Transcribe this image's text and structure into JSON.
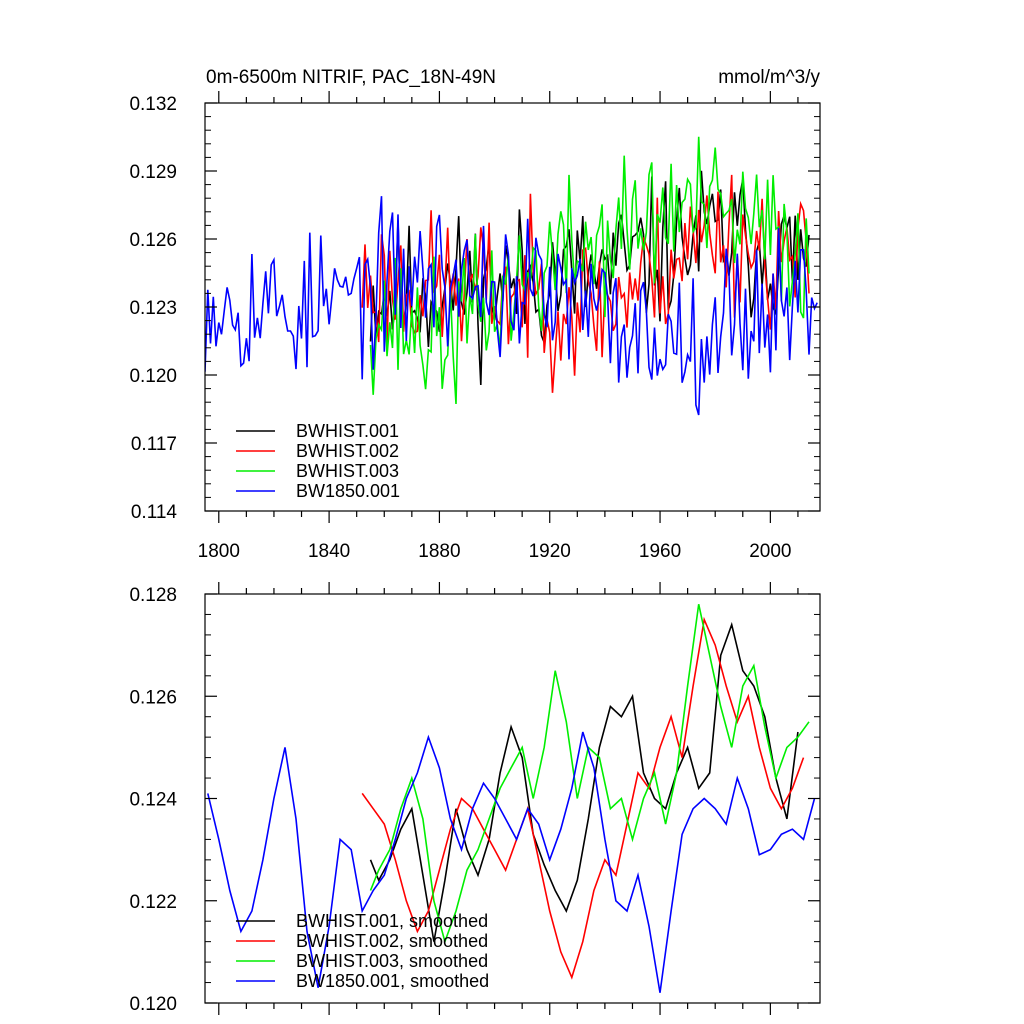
{
  "chart_data": [
    {
      "type": "line",
      "title": "0m-6500m NITRIF, PAC_18N-49N",
      "units": "mmol/m^3/y",
      "xlim": [
        1795,
        2018
      ],
      "ylim": [
        0.114,
        0.132
      ],
      "x_ticks": [
        1800,
        1840,
        1880,
        1920,
        1960,
        2000
      ],
      "y_ticks": [
        0.114,
        0.117,
        0.12,
        0.123,
        0.126,
        0.129,
        0.132
      ],
      "y_tick_labels": [
        "0.114",
        "0.117",
        "0.120",
        "0.123",
        "0.126",
        "0.129",
        "0.132"
      ],
      "x_tick_labels": [
        "1800",
        "1840",
        "1880",
        "1920",
        "1960",
        "2000"
      ],
      "legend_position": "bottom-left",
      "series": [
        {
          "name": "BWHIST.001",
          "color": "#000000",
          "x_start": 1855,
          "x_end": 2014,
          "mean": 0.1245,
          "amplitude": 0.003,
          "seed": 11,
          "trend": [
            [
              1855,
              0.1235
            ],
            [
              1900,
              0.124
            ],
            [
              1940,
              0.1245
            ],
            [
              1980,
              0.1262
            ],
            [
              2014,
              0.125
            ]
          ]
        },
        {
          "name": "BWHIST.002",
          "color": "#ff0000",
          "x_start": 1852,
          "x_end": 2014,
          "mean": 0.124,
          "amplitude": 0.003,
          "seed": 23,
          "trend": [
            [
              1852,
              0.124
            ],
            [
              1900,
              0.1238
            ],
            [
              1940,
              0.123
            ],
            [
              1980,
              0.1265
            ],
            [
              2014,
              0.1245
            ]
          ]
        },
        {
          "name": "BWHIST.003",
          "color": "#00ee00",
          "x_start": 1855,
          "x_end": 2014,
          "mean": 0.1242,
          "amplitude": 0.003,
          "seed": 37,
          "trend": [
            [
              1855,
              0.1228
            ],
            [
              1880,
              0.1215
            ],
            [
              1920,
              0.125
            ],
            [
              1970,
              0.1275
            ],
            [
              2014,
              0.1255
            ]
          ]
        },
        {
          "name": "BW1850.001",
          "color": "#0000ff",
          "x_start": 1795,
          "x_end": 2017,
          "mean": 0.1232,
          "amplitude": 0.003,
          "seed": 53,
          "trend": [
            [
              1795,
              0.1235
            ],
            [
              1830,
              0.1228
            ],
            [
              1875,
              0.1245
            ],
            [
              1920,
              0.1235
            ],
            [
              1960,
              0.1215
            ],
            [
              2017,
              0.1238
            ]
          ]
        }
      ]
    },
    {
      "type": "line",
      "xlim": [
        1795,
        2018
      ],
      "ylim": [
        0.12,
        0.128
      ],
      "y_ticks": [
        0.12,
        0.122,
        0.124,
        0.126,
        0.128
      ],
      "y_tick_labels": [
        "0.120",
        "0.122",
        "0.124",
        "0.126",
        "0.128"
      ],
      "legend_position": "bottom-left",
      "series": [
        {
          "name": "BWHIST.001, smoothed",
          "color": "#000000",
          "x": [
            1855,
            1858,
            1862,
            1866,
            1870,
            1874,
            1878,
            1882,
            1886,
            1890,
            1894,
            1898,
            1902,
            1906,
            1910,
            1914,
            1918,
            1922,
            1926,
            1930,
            1934,
            1938,
            1942,
            1946,
            1950,
            1954,
            1958,
            1962,
            1966,
            1970,
            1974,
            1978,
            1982,
            1986,
            1990,
            1994,
            1998,
            2002,
            2006,
            2010
          ],
          "y": [
            0.1228,
            0.1224,
            0.1228,
            0.1234,
            0.1238,
            0.1225,
            0.1212,
            0.1224,
            0.1238,
            0.123,
            0.1225,
            0.1232,
            0.1245,
            0.1254,
            0.1248,
            0.1233,
            0.1227,
            0.1222,
            0.1218,
            0.1224,
            0.1236,
            0.125,
            0.1258,
            0.1256,
            0.126,
            0.1245,
            0.124,
            0.1238,
            0.1245,
            0.125,
            0.1242,
            0.1245,
            0.1268,
            0.1274,
            0.1265,
            0.1262,
            0.1256,
            0.1244,
            0.1236,
            0.1253
          ]
        },
        {
          "name": "BWHIST.002, smoothed",
          "color": "#ff0000",
          "x": [
            1852,
            1856,
            1860,
            1864,
            1868,
            1872,
            1876,
            1880,
            1884,
            1888,
            1892,
            1896,
            1900,
            1904,
            1908,
            1912,
            1916,
            1920,
            1924,
            1928,
            1932,
            1936,
            1940,
            1944,
            1948,
            1952,
            1956,
            1960,
            1964,
            1968,
            1972,
            1976,
            1980,
            1984,
            1988,
            1992,
            1996,
            2000,
            2004,
            2008,
            2012
          ],
          "y": [
            0.1241,
            0.1238,
            0.1235,
            0.1228,
            0.122,
            0.1214,
            0.1218,
            0.1226,
            0.1234,
            0.124,
            0.1238,
            0.1234,
            0.123,
            0.1226,
            0.1232,
            0.1238,
            0.1228,
            0.1218,
            0.121,
            0.1205,
            0.1212,
            0.1222,
            0.1228,
            0.1225,
            0.1235,
            0.1245,
            0.1242,
            0.125,
            0.1256,
            0.1248,
            0.1262,
            0.1275,
            0.127,
            0.1262,
            0.1255,
            0.126,
            0.125,
            0.1242,
            0.1238,
            0.1242,
            0.1248
          ]
        },
        {
          "name": "BWHIST.003, smoothed",
          "color": "#00ee00",
          "x": [
            1855,
            1858,
            1862,
            1866,
            1870,
            1874,
            1878,
            1882,
            1886,
            1890,
            1894,
            1898,
            1902,
            1906,
            1910,
            1914,
            1918,
            1922,
            1926,
            1930,
            1934,
            1938,
            1942,
            1946,
            1950,
            1954,
            1958,
            1962,
            1966,
            1970,
            1974,
            1978,
            1982,
            1986,
            1990,
            1994,
            1998,
            2002,
            2006,
            2010,
            2014
          ],
          "y": [
            0.1222,
            0.1226,
            0.123,
            0.1238,
            0.1244,
            0.1236,
            0.122,
            0.1212,
            0.1218,
            0.1226,
            0.123,
            0.1236,
            0.1242,
            0.1246,
            0.125,
            0.124,
            0.125,
            0.1265,
            0.1255,
            0.124,
            0.125,
            0.1248,
            0.1238,
            0.124,
            0.1232,
            0.124,
            0.1245,
            0.1235,
            0.1245,
            0.1262,
            0.1278,
            0.1268,
            0.1258,
            0.125,
            0.1262,
            0.1266,
            0.1254,
            0.1244,
            0.125,
            0.1252,
            0.1255
          ]
        },
        {
          "name": "BW1850.001, smoothed",
          "color": "#0000ff",
          "x": [
            1796,
            1800,
            1804,
            1808,
            1812,
            1816,
            1820,
            1824,
            1828,
            1832,
            1836,
            1840,
            1844,
            1848,
            1852,
            1856,
            1860,
            1864,
            1868,
            1872,
            1876,
            1880,
            1884,
            1888,
            1892,
            1896,
            1900,
            1904,
            1908,
            1912,
            1916,
            1920,
            1924,
            1928,
            1932,
            1936,
            1940,
            1944,
            1948,
            1952,
            1956,
            1960,
            1964,
            1968,
            1972,
            1976,
            1980,
            1984,
            1988,
            1992,
            1996,
            2000,
            2004,
            2008,
            2012,
            2016
          ],
          "y": [
            0.1241,
            0.1232,
            0.1222,
            0.1214,
            0.1218,
            0.1228,
            0.124,
            0.125,
            0.1236,
            0.1214,
            0.1203,
            0.1215,
            0.1232,
            0.123,
            0.1218,
            0.1222,
            0.1225,
            0.1232,
            0.124,
            0.1245,
            0.1252,
            0.1246,
            0.1236,
            0.123,
            0.1238,
            0.1243,
            0.124,
            0.1236,
            0.1232,
            0.1238,
            0.1235,
            0.1228,
            0.1234,
            0.1242,
            0.1253,
            0.1246,
            0.1232,
            0.122,
            0.1218,
            0.1225,
            0.1215,
            0.1202,
            0.1218,
            0.1233,
            0.1238,
            0.124,
            0.1238,
            0.1235,
            0.1244,
            0.1238,
            0.1229,
            0.123,
            0.1233,
            0.1234,
            0.1232,
            0.124
          ]
        }
      ]
    }
  ]
}
